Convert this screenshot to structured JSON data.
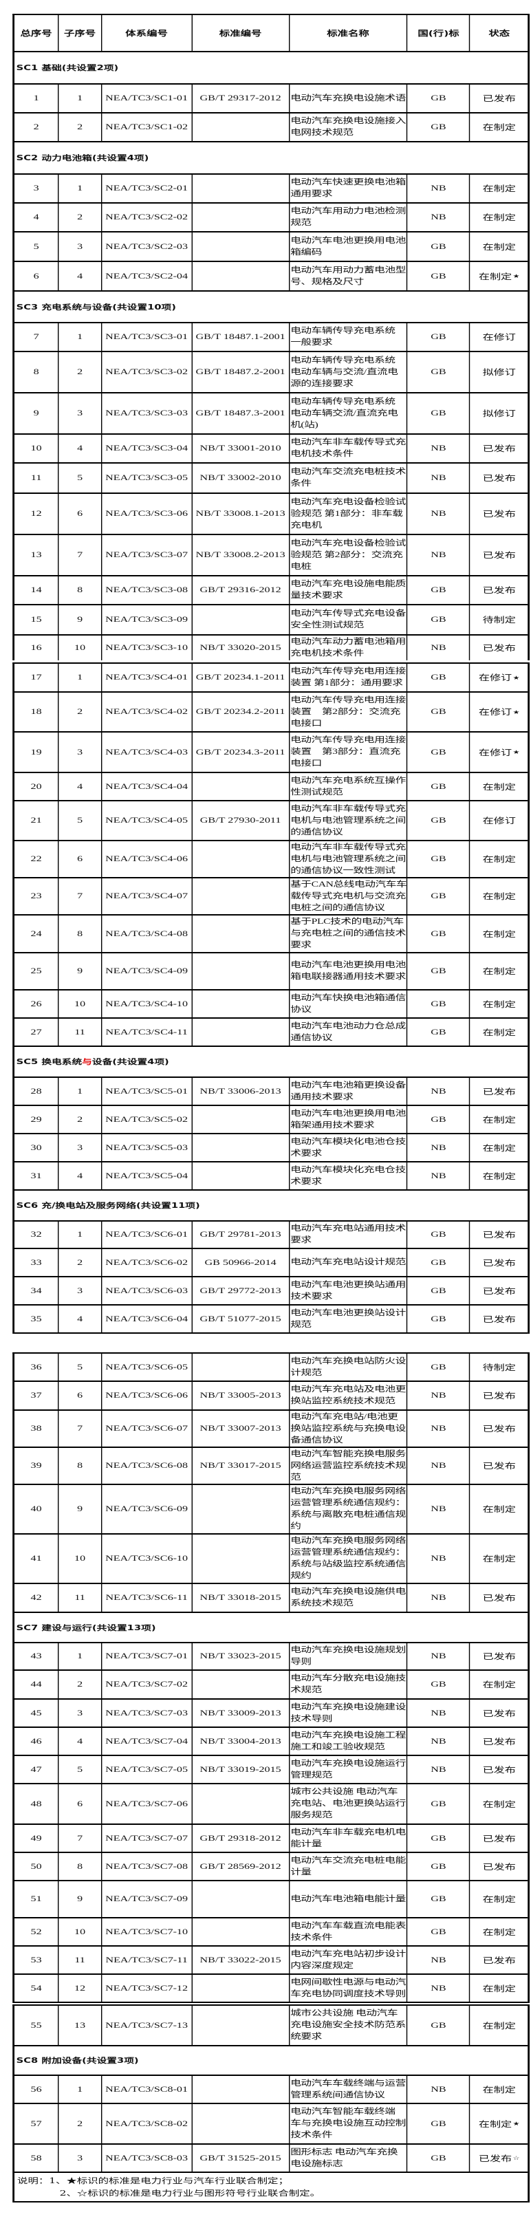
{
  "header": [
    "总序号",
    "子序号",
    "体系编号",
    "标准编号",
    "标准名称",
    "国(行)标",
    "状态"
  ],
  "colors": {
    "border": "#000000",
    "highlight": "#e00000"
  },
  "blocks": [
    {
      "items": [
        {
          "section": "SC1 基础(共设置2项)"
        },
        {
          "r": [
            "1",
            "1",
            "NEA/TC3/SC1-01",
            "GB/T 29317-2012",
            "电动汽车充换电设施术语",
            "GB",
            "已发布"
          ]
        },
        {
          "r": [
            "2",
            "2",
            "NEA/TC3/SC1-02",
            "",
            "电动汽车充换电设施接入\n电网技术规范",
            "GB",
            "在制定"
          ]
        },
        {
          "section": "SC2 动力电池箱(共设置4项)"
        },
        {
          "r": [
            "3",
            "1",
            "NEA/TC3/SC2-01",
            "",
            "电动汽车快速更换电池箱\n通用要求",
            "NB",
            "在制定"
          ]
        },
        {
          "r": [
            "4",
            "2",
            "NEA/TC3/SC2-02",
            "",
            "电动汽车用动力电池检测\n规范",
            "NB",
            "在制定"
          ]
        },
        {
          "r": [
            "5",
            "3",
            "NEA/TC3/SC2-03",
            "",
            "电动汽车电池更换用电池\n箱编码",
            "GB",
            "在制定"
          ]
        },
        {
          "r": [
            "6",
            "4",
            "NEA/TC3/SC2-04",
            "",
            "电动汽车用动力蓄电池型\n号、规格及尺寸",
            "GB",
            "在制定"
          ],
          "mark": "★"
        },
        {
          "section": "SC3 充电系统与设备(共设置10项)"
        },
        {
          "r": [
            "7",
            "1",
            "NEA/TC3/SC3-01",
            "GB/T 18487.1-2001",
            "电动车辆传导充电系统\n一般要求",
            "GB",
            "在修订"
          ]
        },
        {
          "r": [
            "8",
            "2",
            "NEA/TC3/SC3-02",
            "GB/T 18487.2-2001",
            "电动车辆传导充电系统\n电动车辆与交流/直流电\n源的连接要求",
            "GB",
            "拟修订"
          ]
        },
        {
          "r": [
            "9",
            "3",
            "NEA/TC3/SC3-03",
            "GB/T 18487.3-2001",
            "电动车辆传导充电系统\n电动车辆交流/直流充电\n机(站)",
            "GB",
            "拟修订"
          ]
        },
        {
          "r": [
            "10",
            "4",
            "NEA/TC3/SC3-04",
            "NB/T 33001-2010",
            "电动汽车非车载传导式充\n电机技术条件",
            "NB",
            "已发布"
          ]
        },
        {
          "r": [
            "11",
            "5",
            "NEA/TC3/SC3-05",
            "NB/T 33002-2010",
            "电动汽车交流充电桩技术\n条件",
            "NB",
            "已发布"
          ]
        },
        {
          "r": [
            "12",
            "6",
            "NEA/TC3/SC3-06",
            "NB/T 33008.1-2013",
            "电动汽车充电设备检验试\n验规范 第1部分：非车载\n充电机",
            "NB",
            "已发布"
          ]
        },
        {
          "r": [
            "13",
            "7",
            "NEA/TC3/SC3-07",
            "NB/T 33008.2-2013",
            "电动汽车充电设备检验试\n验规范 第2部分：交流充\n电桩",
            "NB",
            "已发布"
          ]
        },
        {
          "r": [
            "14",
            "8",
            "NEA/TC3/SC3-08",
            "GB/T 29316-2012",
            "电动汽车充电设施电能质\n量技术要求",
            "GB",
            "已发布"
          ]
        },
        {
          "r": [
            "15",
            "9",
            "NEA/TC3/SC3-09",
            "",
            "电动汽车传导式充电设备\n安全性测试规范",
            "GB",
            "待制定"
          ]
        },
        {
          "r": [
            "16",
            "10",
            "NEA/TC3/SC3-10",
            "NB/T 33020-2015",
            "电动汽车动力蓄电池箱用\n充电机技术条件",
            "NB",
            "已发布"
          ]
        }
      ]
    },
    {
      "items": [
        {
          "r": [
            "17",
            "1",
            "NEA/TC3/SC4-01",
            "GB/T 20234.1-2011",
            "电动汽车传导充电用连接\n装置 第1部分：通用要求",
            "GB",
            "在修订"
          ],
          "mark": "★"
        },
        {
          "r": [
            "18",
            "2",
            "NEA/TC3/SC4-02",
            "GB/T 20234.2-2011",
            "电动汽车传导充电用连接\n装置　第2部分：交流充\n电接口",
            "GB",
            "在修订"
          ],
          "mark": "★"
        },
        {
          "r": [
            "19",
            "3",
            "NEA/TC3/SC4-03",
            "GB/T 20234.3-2011",
            "电动汽车传导充电用连接\n装置　第3部分：直流充\n电接口",
            "GB",
            "在修订"
          ],
          "mark": "★"
        },
        {
          "r": [
            "20",
            "4",
            "NEA/TC3/SC4-04",
            "",
            "电动汽车充电系统互操作\n性测试规范",
            "GB",
            "在制定"
          ]
        },
        {
          "r": [
            "21",
            "5",
            "NEA/TC3/SC4-05",
            "GB/T 27930-2011",
            "电动汽车非车载传导式充\n电机与电池管理系统之间\n的通信协议",
            "GB",
            "在修订"
          ]
        },
        {
          "r": [
            "22",
            "6",
            "NEA/TC3/SC4-06",
            "",
            "电动汽车非车载传导式充\n电机与电池管理系统之间\n的通信协议一致性测试",
            "GB",
            "在制定"
          ]
        },
        {
          "r": [
            "23",
            "7",
            "NEA/TC3/SC4-07",
            "",
            "基于CAN总线电动汽车车\n载传导式充电机与交流充\n电桩之间的通信协议",
            "GB",
            "在制定"
          ]
        },
        {
          "r": [
            "24",
            "8",
            "NEA/TC3/SC4-08",
            "",
            "基于PLC技术的电动汽车\n与充电桩之间的通信技术\n要求",
            "GB",
            "在制定"
          ]
        },
        {
          "r": [
            "25",
            "9",
            "NEA/TC3/SC4-09",
            "",
            "电动汽车电池更换用电池\n箱电联接器通用技术要求",
            "GB",
            "在制定"
          ]
        },
        {
          "r": [
            "26",
            "10",
            "NEA/TC3/SC4-10",
            "",
            "电动汽车快换电池箱通信\n协议",
            "GB",
            "在制定"
          ]
        },
        {
          "r": [
            "27",
            "11",
            "NEA/TC3/SC4-11",
            "",
            "电动汽车电池动力仓总成\n通信协议",
            "GB",
            "在制定"
          ]
        },
        {
          "section": "SC5 换电系统",
          "section_red": "与",
          "section_post": "设备(共设置4项)"
        },
        {
          "r": [
            "28",
            "1",
            "NEA/TC3/SC5-01",
            "NB/T 33006-2013",
            "电动汽车电池箱更换设备\n通用技术要求",
            "NB",
            "已发布"
          ]
        },
        {
          "r": [
            "29",
            "2",
            "NEA/TC3/SC5-02",
            "",
            "电动汽车电池更换用电池\n箱架通用技术要求",
            "GB",
            "在制定"
          ]
        },
        {
          "r": [
            "30",
            "3",
            "NEA/TC3/SC5-03",
            "",
            "电动汽车模块化电池仓技\n术要求",
            "NB",
            "在制定"
          ]
        },
        {
          "r": [
            "31",
            "4",
            "NEA/TC3/SC5-04",
            "",
            "电动汽车模块化充电仓技\n术要求",
            "NB",
            "在制定"
          ]
        },
        {
          "section": "SC6 充/换电站及服务网络(共设置11项)"
        },
        {
          "r": [
            "32",
            "1",
            "NEA/TC3/SC6-01",
            "GB/T 29781-2013",
            "电动汽车充电站通用技术\n要求",
            "GB",
            "已发布"
          ]
        },
        {
          "r": [
            "33",
            "2",
            "NEA/TC3/SC6-02",
            "GB 50966-2014",
            "电动汽车充电站设计规范",
            "GB",
            "已发布"
          ]
        },
        {
          "r": [
            "34",
            "3",
            "NEA/TC3/SC6-03",
            "GB/T 29772-2013",
            "电动汽车电池更换站通用\n技术要求",
            "GB",
            "已发布"
          ]
        },
        {
          "r": [
            "35",
            "4",
            "NEA/TC3/SC6-04",
            "GB/T 51077-2015",
            "电动汽车电池更换站设计\n规范",
            "GB",
            "已发布"
          ]
        }
      ]
    },
    {
      "items": [
        {
          "r": [
            "36",
            "5",
            "NEA/TC3/SC6-05",
            "",
            "电动汽车充换电站防火设\n计规范",
            "GB",
            "待制定"
          ]
        },
        {
          "r": [
            "37",
            "6",
            "NEA/TC3/SC6-06",
            "NB/T 33005-2013",
            "电动汽车充电站及电池更\n换站监控系统技术规范",
            "NB",
            "已发布"
          ]
        },
        {
          "r": [
            "38",
            "7",
            "NEA/TC3/SC6-07",
            "NB/T 33007-2013",
            "电动汽车充电站/电池更\n换站监控系统与充换电设\n备通信协议",
            "NB",
            "已发布"
          ]
        },
        {
          "r": [
            "39",
            "8",
            "NEA/TC3/SC6-08",
            "NB/T 33017-2015",
            "电动汽车智能充换电服务\n网络运营监控系统技术规\n范",
            "NB",
            "已发布"
          ]
        },
        {
          "r": [
            "40",
            "9",
            "NEA/TC3/SC6-09",
            "",
            "电动汽车充换电服务网络\n运营管理系统通信规约：\n系统与离散充电桩通信规\n约",
            "NB",
            "在制定"
          ]
        },
        {
          "r": [
            "41",
            "10",
            "NEA/TC3/SC6-10",
            "",
            "电动汽车充换电服务网络\n运营管理系统通信规约：\n系统与站级监控系统通信\n规约",
            "NB",
            "在制定"
          ]
        },
        {
          "r": [
            "42",
            "11",
            "NEA/TC3/SC6-11",
            "NB/T 33018-2015",
            "电动汽车充换电设施供电\n系统技术规范",
            "NB",
            "已发布"
          ]
        },
        {
          "section": "SC7 建设与运行(共设置13项)"
        },
        {
          "r": [
            "43",
            "1",
            "NEA/TC3/SC7-01",
            "NB/T 33023-2015",
            "电动汽车充换电设施规划\n导则",
            "NB",
            "已发布"
          ]
        },
        {
          "r": [
            "44",
            "2",
            "NEA/TC3/SC7-02",
            "",
            "电动汽车分散充电设施技\n术规范",
            "GB",
            "在制定"
          ]
        },
        {
          "r": [
            "45",
            "3",
            "NEA/TC3/SC7-03",
            "NB/T 33009-2013",
            "电动汽车充换电设施建设\n技术导则",
            "NB",
            "已发布"
          ]
        },
        {
          "r": [
            "46",
            "4",
            "NEA/TC3/SC7-04",
            "NB/T 33004-2013",
            "电动汽车充换电设施工程\n施工和竣工验收规范",
            "NB",
            "已发布"
          ]
        },
        {
          "r": [
            "47",
            "5",
            "NEA/TC3/SC7-05",
            "NB/T 33019-2015",
            "电动汽车充换电设施运行\n管理规范",
            "NB",
            "已发布"
          ]
        },
        {
          "r": [
            "48",
            "6",
            "NEA/TC3/SC7-06",
            "",
            "城市公共设施 电动汽车\n充电站、电池更换站运行\n服务规范",
            "GB",
            "在制定"
          ]
        },
        {
          "r": [
            "49",
            "7",
            "NEA/TC3/SC7-07",
            "GB/T 29318-2012",
            "电动汽车非车载充电机电\n能计量",
            "GB",
            "已发布"
          ]
        },
        {
          "r": [
            "50",
            "8",
            "NEA/TC3/SC7-08",
            "GB/T 28569-2012",
            "电动汽车交流充电桩电能\n计量",
            "GB",
            "已发布"
          ]
        },
        {
          "r": [
            "51",
            "9",
            "NEA/TC3/SC7-09",
            "",
            "电动汽车电池箱电能计量",
            "GB",
            "在制定"
          ]
        },
        {
          "r": [
            "52",
            "10",
            "NEA/TC3/SC7-10",
            "",
            "电动汽车车载直流电能表\n技术条件",
            "GB",
            "在制定"
          ]
        },
        {
          "r": [
            "53",
            "11",
            "NEA/TC3/SC7-11",
            "NB/T 33022-2015",
            "电动汽车充电站初步设计\n内容深度规定",
            "NB",
            "已发布"
          ]
        },
        {
          "r": [
            "54",
            "12",
            "NEA/TC3/SC7-12",
            "",
            "电网间歇性电源与电动汽\n车充电协同调度技术导则",
            "NB",
            "在制定"
          ]
        }
      ]
    },
    {
      "items": [
        {
          "r": [
            "55",
            "13",
            "NEA/TC3/SC7-13",
            "",
            "城市公共设施 电动汽车\n充电设施安全技术防范系\n统要求",
            "GB",
            "在制定"
          ]
        },
        {
          "section": "SC8 附加设备(共设置3项)"
        },
        {
          "r": [
            "56",
            "1",
            "NEA/TC3/SC8-01",
            "",
            "电动汽车车载终端与运营\n管理系统间通信协议",
            "NB",
            "在制定"
          ]
        },
        {
          "r": [
            "57",
            "2",
            "NEA/TC3/SC8-02",
            "",
            "电动汽车智能车载终端\n车与充换电设施互动控制\n技术条件",
            "GB",
            "在制定"
          ],
          "mark": "★"
        },
        {
          "r": [
            "58",
            "3",
            "NEA/TC3/SC8-03",
            "GB/T 31525-2015",
            "图形标志 电动汽车充换\n电设施标志",
            "GB",
            "已发布"
          ],
          "mark": "☆"
        }
      ]
    }
  ],
  "notes": [
    "说明：1、★标识的标准是电力行业与汽车行业联合制定；",
    "2、☆标识的标准是电力行业与图形符号行业联合制定。"
  ]
}
